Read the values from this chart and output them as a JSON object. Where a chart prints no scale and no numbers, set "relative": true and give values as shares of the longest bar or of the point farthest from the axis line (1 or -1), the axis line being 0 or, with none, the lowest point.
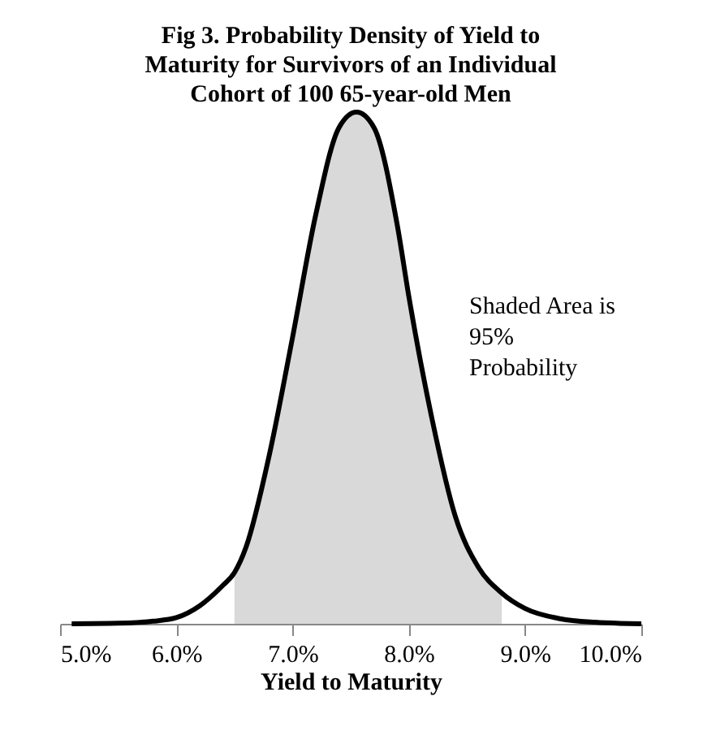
{
  "chart_data": {
    "type": "line",
    "title": "Fig 3.  Probability Density of Yield to Maturity for Survivors of an Individual Cohort of 100 65-year-old Men",
    "xlabel": "Yield to Maturity",
    "relative": true,
    "x": [
      5.1,
      5.5,
      5.8,
      6.0,
      6.2,
      6.4,
      6.5,
      6.6,
      6.8,
      7.0,
      7.2,
      7.4,
      7.55,
      7.7,
      7.9,
      8.0,
      8.2,
      8.4,
      8.6,
      8.8,
      9.0,
      9.3,
      9.6,
      10.0
    ],
    "series": [
      {
        "type": "area",
        "color": "#d9d9d9",
        "x": [
          6.5,
          6.6,
          6.8,
          7.0,
          7.2,
          7.4,
          7.55,
          7.7,
          7.9,
          8.0,
          8.2,
          8.4,
          8.6,
          8.8
        ],
        "values": [
          0.1,
          0.15,
          0.33,
          0.56,
          0.8,
          0.97,
          1,
          0.97,
          0.78,
          0.64,
          0.4,
          0.21,
          0.11,
          0.06
        ]
      },
      {
        "color": "#000000",
        "values": [
          0,
          0.001,
          0.005,
          0.012,
          0.035,
          0.075,
          0.1,
          0.15,
          0.33,
          0.56,
          0.8,
          0.97,
          1,
          0.97,
          0.78,
          0.64,
          0.4,
          0.21,
          0.11,
          0.06,
          0.03,
          0.01,
          0.003,
          0
        ]
      }
    ],
    "xlim": [
      5,
      10
    ],
    "xticks": [
      {
        "value": 5,
        "label": "5.0%"
      },
      {
        "value": 6,
        "label": "6.0%"
      },
      {
        "value": 7,
        "label": "7.0%"
      },
      {
        "value": 8,
        "label": "8.0%"
      },
      {
        "value": 9,
        "label": "9.0%"
      },
      {
        "value": 10,
        "label": "10.0%"
      }
    ],
    "annotations": [
      "Shaded Area is 95% Probability"
    ],
    "grid": false,
    "marker": "none",
    "line_style": "solid"
  }
}
